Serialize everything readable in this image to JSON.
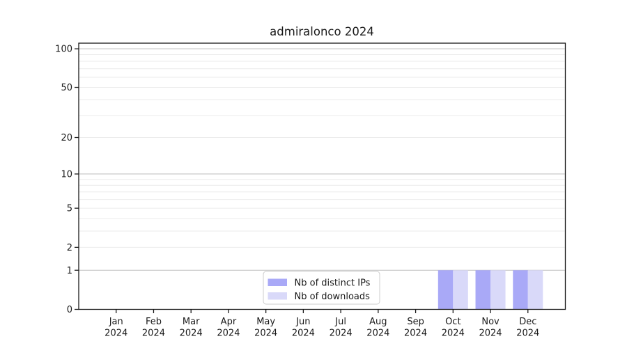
{
  "chart_data": {
    "type": "bar",
    "title": "admiralonco 2024",
    "x": {
      "months": [
        "Jan",
        "Feb",
        "Mar",
        "Apr",
        "May",
        "Jun",
        "Jul",
        "Aug",
        "Sep",
        "Oct",
        "Nov",
        "Dec"
      ],
      "year": "2024"
    },
    "series": [
      {
        "name": "Nb of distinct IPs",
        "color": "#a9a9f7",
        "values": [
          0,
          0,
          0,
          0,
          0,
          0,
          0,
          0,
          0,
          1,
          1,
          1
        ]
      },
      {
        "name": "Nb of downloads",
        "color": "#d9d9f9",
        "values": [
          0,
          0,
          0,
          0,
          0,
          0,
          0,
          0,
          0,
          1,
          1,
          1
        ]
      }
    ],
    "y_axis": {
      "scale": "log1p",
      "ticks": [
        0,
        1,
        2,
        5,
        10,
        20,
        50,
        100
      ],
      "major_gridlines": [
        1,
        10,
        100
      ],
      "minor_gridlines": [
        2,
        3,
        4,
        5,
        6,
        7,
        8,
        9,
        20,
        30,
        40,
        50,
        60,
        70,
        80,
        90
      ],
      "ylim": [
        0,
        110.6
      ]
    },
    "legend": {
      "position": "lower center"
    },
    "grid": true,
    "colors": {
      "axis": "#1a1a1a",
      "text": "#1a1a1a",
      "grid_major": "#c4c4c4",
      "grid_minor": "#ebebeb",
      "legend_border": "#cccccc",
      "background": "#ffffff"
    }
  }
}
